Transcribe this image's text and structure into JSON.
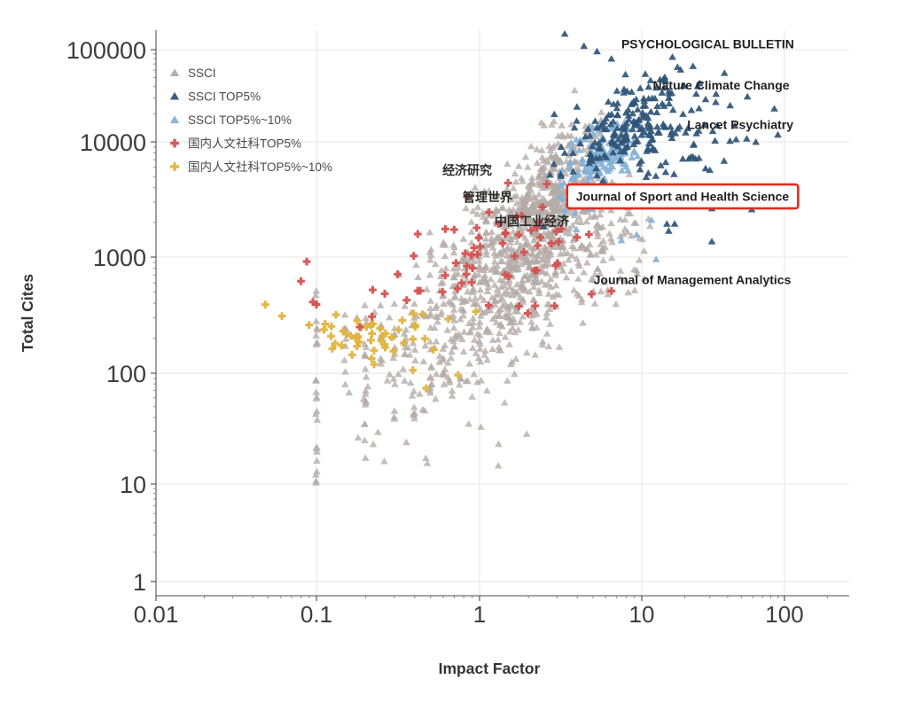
{
  "chart_data": {
    "type": "scatter",
    "title": "",
    "xlabel": "Impact Factor",
    "ylabel": "Total Cites",
    "x_scale": "log",
    "y_scale": "log",
    "x_ticks": [
      0.01,
      0.1,
      1,
      10,
      100
    ],
    "y_ticks": [
      1,
      10,
      100,
      1000,
      10000,
      100000
    ],
    "xlim": [
      0.01,
      250
    ],
    "ylim": [
      0.7,
      180000
    ],
    "grid": true,
    "legend_position": "upper-left-inside",
    "background": "#ffffff",
    "grid_color": "#e7e5e3",
    "axis_color": "#6e6e6e",
    "series": [
      {
        "name": "SSCI",
        "marker": "triangle",
        "color": "#b3aaa6",
        "opacity": 0.78,
        "clusters": [
          {
            "n": 560,
            "if": 1.85,
            "tc": 1000,
            "sx_dec": 0.23,
            "sy_dec": 0.42,
            "corr": 0.55
          },
          {
            "n": 280,
            "if": 2.9,
            "tc": 4100,
            "sx_dec": 0.16,
            "sy_dec": 0.28,
            "corr": 0.45
          },
          {
            "n": 110,
            "if": 0.73,
            "tc": 220,
            "sx_dec": 0.28,
            "sy_dec": 0.36,
            "corr": 0.35
          },
          {
            "n": 70,
            "if": 6.5,
            "tc": 1180,
            "sx_dec": 0.12,
            "sy_dec": 0.25,
            "corr": 0.2
          }
        ],
        "columns": [
          {
            "if": 0.1,
            "n": 26,
            "tc_range": [
              9.5,
              520
            ]
          },
          {
            "if": 0.15,
            "n": 9,
            "tc_range": [
              40,
              400
            ]
          },
          {
            "if": 0.2,
            "n": 16,
            "tc_range": [
              22,
              520
            ]
          },
          {
            "if": 0.25,
            "n": 8,
            "tc_range": [
              50,
              450
            ]
          },
          {
            "if": 0.3,
            "n": 12,
            "tc_range": [
              32,
              500
            ]
          },
          {
            "if": 0.35,
            "n": 7,
            "tc_range": [
              63,
              420
            ]
          },
          {
            "if": 0.4,
            "n": 10,
            "tc_range": [
              36,
              520
            ]
          },
          {
            "if": 0.5,
            "n": 14,
            "tc_range": [
              63,
              2000
            ]
          },
          {
            "if": 0.6,
            "n": 12,
            "tc_range": [
              79,
              2500
            ]
          },
          {
            "if": 0.7,
            "n": 12,
            "tc_range": [
              100,
              2500
            ]
          },
          {
            "if": 0.8,
            "n": 10,
            "tc_range": [
              126,
              3000
            ]
          },
          {
            "if": 0.9,
            "n": 9,
            "tc_range": [
              158,
              3000
            ]
          },
          {
            "if": 1.0,
            "n": 12,
            "tc_range": [
              150,
              3200
            ]
          },
          {
            "if": 1.1,
            "n": 9,
            "tc_range": [
              200,
              3000
            ]
          },
          {
            "if": 1.25,
            "n": 8,
            "tc_range": [
              250,
              3000
            ]
          },
          {
            "if": 1.4,
            "n": 7,
            "tc_range": [
              250,
              2800
            ]
          },
          {
            "if": 1.6,
            "n": 6,
            "tc_range": [
              300,
              2600
            ]
          },
          {
            "if": 2.0,
            "n": 5,
            "tc_range": [
              300,
              2500
            ]
          }
        ],
        "uniforms": [
          {
            "n": 20,
            "if_range": [
              0.18,
              2.2
            ],
            "tc_range": [
              14,
              70
            ]
          }
        ],
        "points": []
      },
      {
        "name": "SSCI TOP5%",
        "marker": "triangle",
        "color": "#2f5578",
        "opacity": 0.92,
        "clusters": [
          {
            "n": 185,
            "if": 8.3,
            "tc": 15500,
            "sx_dec": 0.2,
            "sy_dec": 0.26,
            "corr": 0.55
          },
          {
            "n": 45,
            "if": 20.8,
            "tc": 8700,
            "sx_dec": 0.2,
            "sy_dec": 0.25,
            "corr": 0.3
          }
        ],
        "columns": [],
        "uniforms": [],
        "points": [
          [
            3.35,
            149000
          ],
          [
            4.4,
            110000
          ],
          [
            5.3,
            96000
          ],
          [
            6.5,
            80000
          ],
          [
            38,
            56000
          ],
          [
            85,
            23000
          ],
          [
            90,
            12000
          ],
          [
            63,
            10000
          ],
          [
            28,
            29000
          ],
          [
            33,
            27000
          ],
          [
            45,
            15000
          ],
          [
            55,
            31000
          ],
          [
            30,
            5700
          ],
          [
            28,
            5900
          ],
          [
            31,
            2650
          ],
          [
            31,
            1370
          ],
          [
            15,
            1950
          ],
          [
            17,
            1950
          ],
          [
            59,
            2600
          ]
        ]
      },
      {
        "name": "SSCI TOP5%~10%",
        "marker": "triangle",
        "color": "#84b1d7",
        "opacity": 0.92,
        "clusters": [
          {
            "n": 160,
            "if": 5.6,
            "tc": 6500,
            "sx_dec": 0.115,
            "sy_dec": 0.2,
            "corr": 0.55
          }
        ],
        "columns": [],
        "uniforms": [],
        "points": [
          [
            8.2,
            2700
          ],
          [
            11.7,
            2100
          ],
          [
            9.3,
            1570
          ],
          [
            12.6,
            960
          ],
          [
            7.5,
            1400
          ]
        ]
      },
      {
        "name": "国内人文社科TOP5%",
        "marker": "plus",
        "color": "#d6514e",
        "opacity": 0.95,
        "clusters": [
          {
            "n": 46,
            "if": 0.73,
            "tc": 780,
            "sx_dec": 0.3,
            "sy_dec": 0.2,
            "corr": 0.2
          },
          {
            "n": 15,
            "if": 2.1,
            "tc": 1640,
            "sx_dec": 0.22,
            "sy_dec": 0.16,
            "corr": 0.1
          }
        ],
        "columns": [],
        "uniforms": [],
        "points": [
          [
            8.6,
            4050
          ],
          [
            4.9,
            480
          ],
          [
            6.5,
            510
          ],
          [
            0.08,
            620
          ],
          [
            0.095,
            410
          ],
          [
            0.1,
            390
          ],
          [
            2.2,
            380
          ],
          [
            2.9,
            380
          ],
          [
            1.5,
            4400
          ],
          [
            2.6,
            4300
          ],
          [
            5.2,
            3800
          ]
        ]
      },
      {
        "name": "国内人文社科TOP5%~10%",
        "marker": "plus",
        "color": "#dfb33e",
        "opacity": 0.95,
        "clusters": [
          {
            "n": 46,
            "if": 0.22,
            "tc": 209,
            "sx_dec": 0.19,
            "sy_dec": 0.1,
            "corr": 0.1
          }
        ],
        "columns": [],
        "uniforms": [],
        "points": [
          [
            0.048,
            390
          ],
          [
            0.061,
            310
          ],
          [
            0.09,
            260
          ],
          [
            0.13,
            180
          ],
          [
            0.39,
            106
          ],
          [
            0.74,
            96
          ],
          [
            0.47,
            73
          ],
          [
            0.95,
            340
          ]
        ]
      }
    ],
    "annotations": [
      {
        "text": "PSYCHOLOGICAL BULLETIN",
        "if": 29,
        "tc": 114000,
        "style": "en",
        "boxed": false
      },
      {
        "text": "Nature Climate Change",
        "if": 36,
        "tc": 41000,
        "style": "en",
        "boxed": false
      },
      {
        "text": "Lancet Psychiatry",
        "if": 49,
        "tc": 15200,
        "style": "en",
        "boxed": false
      },
      {
        "text": "经济研究",
        "if": 0.84,
        "tc": 5600,
        "style": "zh",
        "boxed": false
      },
      {
        "text": "管理世界",
        "if": 1.12,
        "tc": 3270,
        "style": "zh",
        "boxed": false
      },
      {
        "text": "中国工业经济",
        "if": 2.1,
        "tc": 2030,
        "style": "zh",
        "boxed": false
      },
      {
        "text": "Journal of Sport and Health Science",
        "if": 19.3,
        "tc": 3330,
        "style": "en",
        "boxed": true
      },
      {
        "text": "Journal of Management Analytics",
        "if": 22.6,
        "tc": 633,
        "style": "en",
        "boxed": false
      }
    ],
    "highlight_box_color": "#e8291d"
  }
}
